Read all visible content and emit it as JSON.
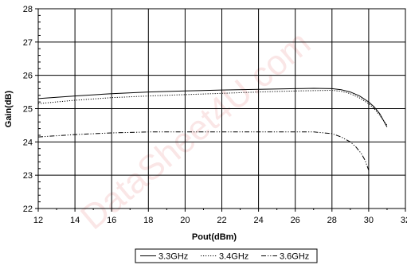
{
  "chart_data": {
    "type": "line",
    "xlabel": "Pout(dBm)",
    "ylabel": "Gain(dB)",
    "xlim": [
      12,
      32
    ],
    "ylim": [
      22,
      28
    ],
    "xticks": [
      12,
      14,
      16,
      18,
      20,
      22,
      24,
      26,
      28,
      30,
      32
    ],
    "yticks": [
      22,
      23,
      24,
      25,
      26,
      27,
      28
    ],
    "grid": true,
    "legend": "bottom",
    "watermark": "DataSheet4U.com",
    "series": [
      {
        "name": "3.3GHz",
        "style": "solid",
        "color": "#000000",
        "x": [
          12,
          14,
          16,
          18,
          20,
          22,
          24,
          26,
          27,
          28,
          28.5,
          29,
          29.5,
          30,
          30.3,
          30.6,
          30.8,
          31
        ],
        "y": [
          25.3,
          25.38,
          25.45,
          25.5,
          25.53,
          25.56,
          25.58,
          25.6,
          25.61,
          25.6,
          25.57,
          25.5,
          25.38,
          25.2,
          25.05,
          24.85,
          24.65,
          24.45
        ]
      },
      {
        "name": "3.4GHz",
        "style": "dotted",
        "color": "#000000",
        "x": [
          12,
          14,
          16,
          18,
          20,
          22,
          24,
          26,
          28,
          28.5,
          29,
          29.5,
          30,
          30.3,
          30.6,
          31
        ],
        "y": [
          25.15,
          25.25,
          25.33,
          25.38,
          25.42,
          25.46,
          25.5,
          25.53,
          25.55,
          25.52,
          25.45,
          25.32,
          25.15,
          25.0,
          24.8,
          24.5
        ]
      },
      {
        "name": "3.6GHz",
        "style": "dashdot",
        "color": "#000000",
        "x": [
          12,
          14,
          16,
          18,
          20,
          22,
          24,
          26,
          27,
          28,
          28.5,
          29,
          29.3,
          29.6,
          29.8,
          30
        ],
        "y": [
          24.15,
          24.22,
          24.27,
          24.3,
          24.3,
          24.3,
          24.3,
          24.3,
          24.3,
          24.25,
          24.15,
          24.0,
          23.85,
          23.65,
          23.45,
          23.15
        ]
      }
    ]
  }
}
